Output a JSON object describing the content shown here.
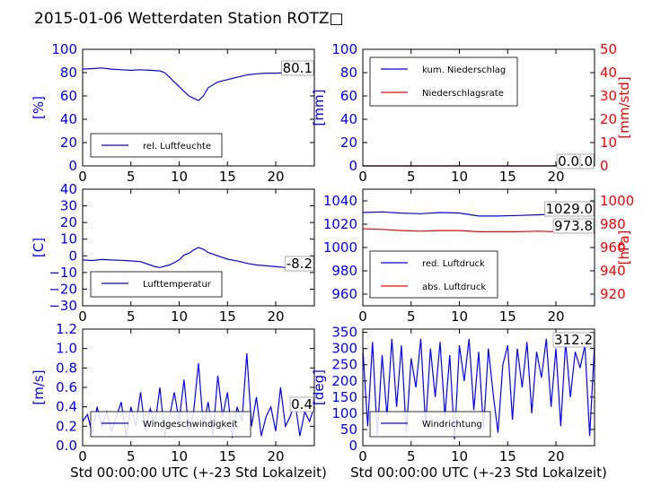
{
  "title": "2015-01-06 Wetterdaten Station ROTZ□",
  "colors": {
    "left_axis": "#0000ff",
    "right_axis": "#ff0000",
    "text": "#000000"
  },
  "chart_data": [
    {
      "type": "line",
      "xlim": [
        0,
        24
      ],
      "xticks": [
        "0",
        "5",
        "10",
        "15",
        "20"
      ],
      "ylim": [
        0,
        100
      ],
      "yticks": [
        "0",
        "20",
        "40",
        "60",
        "80",
        "100"
      ],
      "ylabel": "[%]",
      "legend": {
        "entries": [
          "rel. Luftfeuchte"
        ],
        "placement": "bottom-left"
      },
      "current_values": [
        "80.1"
      ],
      "series": [
        {
          "name": "rel. Luftfeuchte",
          "color": "#0000ff",
          "x": [
            0,
            1,
            2,
            3,
            4,
            5,
            6,
            7,
            8,
            8.5,
            9,
            9.5,
            10,
            10.5,
            11,
            11.5,
            12,
            12.5,
            13,
            14,
            15,
            16,
            17,
            18,
            19,
            20,
            21,
            22,
            23,
            24
          ],
          "y": [
            83,
            83.5,
            84,
            83,
            82.5,
            82,
            82.5,
            82,
            81.5,
            80,
            76,
            72,
            68,
            64,
            60,
            58,
            56,
            60,
            67,
            72,
            74,
            76,
            78,
            79,
            79.5,
            79.5,
            80,
            80,
            80,
            80.1
          ]
        }
      ]
    },
    {
      "type": "line",
      "xlim": [
        0,
        24
      ],
      "xticks": [
        "0",
        "5",
        "10",
        "15",
        "20"
      ],
      "ylim": [
        0,
        100
      ],
      "yticks": [
        "0",
        "20",
        "40",
        "60",
        "80",
        "100"
      ],
      "ylabel": "[mm]",
      "ylim_right": [
        0,
        50
      ],
      "yticks_right": [
        "0",
        "10",
        "20",
        "30",
        "40",
        "50"
      ],
      "ylabel_right": "[mm/std]",
      "legend": {
        "entries": [
          "kum. Niederschlag",
          "Niederschlagsrate"
        ],
        "placement": "top-left"
      },
      "current_values": [
        "0.0",
        "0.0"
      ],
      "series": [
        {
          "name": "kum. Niederschlag",
          "color": "#0000ff",
          "axis": "left",
          "x": [
            0,
            24
          ],
          "y": [
            0,
            0
          ]
        },
        {
          "name": "Niederschlagsrate",
          "color": "#ff0000",
          "axis": "right",
          "x": [
            0,
            24
          ],
          "y": [
            0,
            0
          ]
        }
      ]
    },
    {
      "type": "line",
      "xlim": [
        0,
        24
      ],
      "xticks": [
        "0",
        "5",
        "10",
        "15",
        "20"
      ],
      "ylim": [
        -30,
        40
      ],
      "yticks": [
        "−30",
        "−20",
        "−10",
        "0",
        "10",
        "20",
        "30",
        "40"
      ],
      "ylabel": "[C]",
      "legend": {
        "entries": [
          "Lufttemperatur"
        ],
        "placement": "bottom-left"
      },
      "current_values": [
        "-8.2"
      ],
      "series": [
        {
          "name": "Lufttemperatur",
          "color": "#0000ff",
          "x": [
            0,
            1,
            2,
            3,
            4,
            5,
            6,
            7,
            7.5,
            8,
            9,
            10,
            10.5,
            11,
            11.5,
            12,
            12.5,
            13,
            14,
            15,
            16,
            17,
            18,
            19,
            20,
            21,
            22,
            23,
            24
          ],
          "y": [
            -2.5,
            -2.8,
            -2.2,
            -2.5,
            -2.7,
            -3,
            -3.5,
            -5.5,
            -6.5,
            -7,
            -5.5,
            -2.5,
            0.5,
            1.5,
            3.5,
            5,
            4,
            2,
            0,
            -2,
            -3,
            -4.5,
            -5.5,
            -6,
            -6.5,
            -7,
            -7.5,
            -8,
            -8.2
          ]
        }
      ]
    },
    {
      "type": "line",
      "xlim": [
        0,
        24
      ],
      "xticks": [
        "0",
        "5",
        "10",
        "15",
        "20"
      ],
      "ylim": [
        950,
        1050
      ],
      "yticks": [
        "960",
        "980",
        "1000",
        "1020",
        "1040"
      ],
      "ylabel": "",
      "ylim_right": [
        910,
        1010
      ],
      "yticks_right": [
        "920",
        "940",
        "960",
        "980",
        "1000"
      ],
      "ylabel_right": "[hPa]",
      "legend": {
        "entries": [
          "red. Luftdruck",
          "abs. Luftdruck"
        ],
        "placement": "bottom-left"
      },
      "current_values": [
        "1029.0",
        "973.8"
      ],
      "series": [
        {
          "name": "red. Luftdruck",
          "color": "#0000ff",
          "axis": "left",
          "x": [
            0,
            2,
            4,
            6,
            8,
            10,
            12,
            14,
            16,
            18,
            20,
            22,
            24
          ],
          "y": [
            1030,
            1030.5,
            1029.5,
            1029,
            1030,
            1029.5,
            1027,
            1027,
            1027.5,
            1028,
            1028.5,
            1029,
            1029
          ]
        },
        {
          "name": "abs. Luftdruck",
          "color": "#ff0000",
          "axis": "right",
          "x": [
            0,
            2,
            4,
            6,
            8,
            10,
            12,
            14,
            16,
            18,
            20,
            22,
            24
          ],
          "y": [
            976,
            975.5,
            974.5,
            974,
            974.5,
            974.5,
            973.5,
            973.5,
            973.5,
            974,
            973.5,
            973.8,
            973.8
          ]
        }
      ]
    },
    {
      "type": "line",
      "xlim": [
        0,
        24
      ],
      "xticks": [
        "0",
        "5",
        "10",
        "15",
        "20"
      ],
      "ylim": [
        0,
        1.2
      ],
      "yticks": [
        "0.0",
        "0.2",
        "0.4",
        "0.6",
        "0.8",
        "1.0",
        "1.2"
      ],
      "ylabel": "[m/s]",
      "xlabel": "Std 00:00:00 UTC (+-23 Std Lokalzeit)",
      "legend": {
        "entries": [
          "Windgeschwindigkeit"
        ],
        "placement": "bottom-left"
      },
      "current_values": [
        "0.4"
      ],
      "series": [
        {
          "name": "Windgeschwindigkeit",
          "color": "#0000ff",
          "x": [
            0,
            0.5,
            1,
            1.5,
            2,
            2.5,
            3,
            3.5,
            4,
            4.5,
            5,
            5.5,
            6,
            6.5,
            7,
            7.5,
            8,
            8.5,
            9,
            9.5,
            10,
            10.5,
            11,
            11.5,
            12,
            12.5,
            13,
            13.5,
            14,
            14.5,
            15,
            15.5,
            16,
            16.5,
            17,
            17.5,
            18,
            18.5,
            19,
            19.5,
            20,
            20.5,
            21,
            21.5,
            22,
            22.5,
            23,
            23.5,
            24
          ],
          "y": [
            0.25,
            0.32,
            0.12,
            0.4,
            0.2,
            0.35,
            0.15,
            0.3,
            0.45,
            0.1,
            0.4,
            0.2,
            0.55,
            0.15,
            0.38,
            0.22,
            0.6,
            0.1,
            0.3,
            0.55,
            0.25,
            0.68,
            0.15,
            0.35,
            0.85,
            0.2,
            0.45,
            0.1,
            0.72,
            0.3,
            0.55,
            0.08,
            0.4,
            0.25,
            0.95,
            0.2,
            0.5,
            0.1,
            0.3,
            0.4,
            0.15,
            0.6,
            0.2,
            0.3,
            0.45,
            0.1,
            0.35,
            0.25,
            0.4
          ]
        }
      ]
    },
    {
      "type": "line",
      "xlim": [
        0,
        24
      ],
      "xticks": [
        "0",
        "5",
        "10",
        "15",
        "20"
      ],
      "ylim": [
        0,
        360
      ],
      "yticks": [
        "0",
        "50",
        "100",
        "150",
        "200",
        "250",
        "300",
        "350"
      ],
      "ylabel": "[deg]",
      "xlabel": "Std 00:00:00 UTC (+-23 Std Lokalzeit)",
      "legend": {
        "entries": [
          "Windrichtung"
        ],
        "placement": "bottom-left"
      },
      "current_values": [
        "312.2"
      ],
      "series": [
        {
          "name": "Windrichtung",
          "color": "#0000ff",
          "x": [
            0,
            0.5,
            1,
            1.5,
            2,
            2.5,
            3,
            3.5,
            4,
            4.5,
            5,
            5.5,
            6,
            6.5,
            7,
            7.5,
            8,
            8.5,
            9,
            9.5,
            10,
            10.5,
            11,
            11.5,
            12,
            12.5,
            13,
            13.5,
            14,
            14.5,
            15,
            15.5,
            16,
            16.5,
            17,
            17.5,
            18,
            18.5,
            19,
            19.5,
            20,
            20.5,
            21,
            21.5,
            22,
            22.5,
            23,
            23.5,
            24
          ],
          "y": [
            300,
            60,
            320,
            30,
            280,
            90,
            330,
            120,
            310,
            40,
            270,
            180,
            330,
            60,
            300,
            150,
            320,
            90,
            280,
            20,
            310,
            200,
            330,
            110,
            290,
            50,
            300,
            160,
            40,
            250,
            310,
            80,
            300,
            180,
            320,
            100,
            290,
            210,
            330,
            120,
            300,
            60,
            320,
            150,
            290,
            240,
            310,
            30,
            312.2
          ]
        }
      ]
    }
  ]
}
